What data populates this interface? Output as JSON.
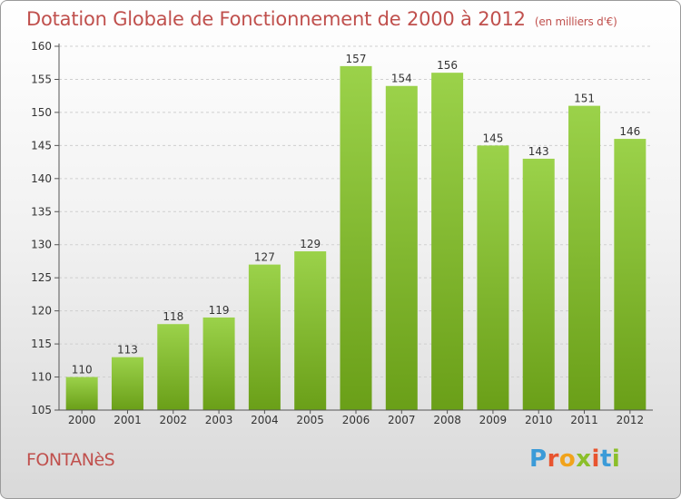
{
  "header": {
    "title": "Dotation Globale de Fonctionnement de 2000 à 2012",
    "unit": "(en milliers d'€)"
  },
  "footer": {
    "town": "FONTANèS",
    "logo": {
      "letters": [
        "P",
        "r",
        "o",
        "x",
        "i",
        "t",
        "i"
      ],
      "colors": [
        "#3b9bd8",
        "#e8542f",
        "#f1a31b",
        "#8bbf2a",
        "#e8542f",
        "#3b9bd8",
        "#8bbf2a"
      ]
    }
  },
  "colors": {
    "bar_light": "#9bd24a",
    "bar_dark": "#6a9f18",
    "grid": "#cfcfcf",
    "axis": "#555555",
    "title": "#c0504d"
  },
  "chart_data": {
    "type": "bar",
    "title": "Dotation Globale de Fonctionnement de 2000 à 2012",
    "subtitle": "(en milliers d'€)",
    "xlabel": "",
    "ylabel": "",
    "categories": [
      "2000",
      "2001",
      "2002",
      "2003",
      "2004",
      "2005",
      "2006",
      "2007",
      "2008",
      "2009",
      "2010",
      "2011",
      "2012"
    ],
    "values": [
      110,
      113,
      118,
      119,
      127,
      129,
      157,
      154,
      156,
      145,
      143,
      151,
      146
    ],
    "ylim": [
      105,
      160
    ],
    "yticks": [
      105,
      110,
      115,
      120,
      125,
      130,
      135,
      140,
      145,
      150,
      155,
      160
    ],
    "grid": "horizontal dashed",
    "data_labels": true,
    "legend": "none"
  }
}
